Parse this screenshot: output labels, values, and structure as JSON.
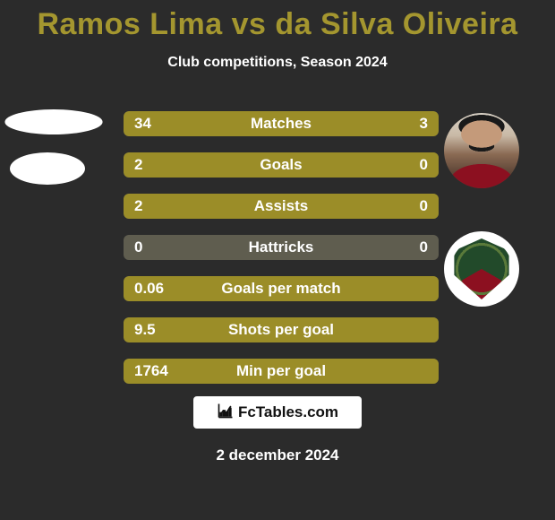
{
  "title": "Ramos Lima vs da Silva Oliveira",
  "subtitle": "Club competitions, Season 2024",
  "colors": {
    "background": "#2b2b2b",
    "title": "#a4962f",
    "text": "#ffffff",
    "fill_left": "#9b8d28",
    "fill_right": "#9b8d28",
    "track": "#5f5d4f"
  },
  "rows": [
    {
      "label": "Matches",
      "left": "34",
      "right": "3",
      "fill_left_pct": 78,
      "fill_right_pct": 22
    },
    {
      "label": "Goals",
      "left": "2",
      "right": "0",
      "fill_left_pct": 100,
      "fill_right_pct": 0
    },
    {
      "label": "Assists",
      "left": "2",
      "right": "0",
      "fill_left_pct": 100,
      "fill_right_pct": 0
    },
    {
      "label": "Hattricks",
      "left": "0",
      "right": "0",
      "fill_left_pct": 0,
      "fill_right_pct": 0
    },
    {
      "label": "Goals per match",
      "left": "0.06",
      "right": "",
      "fill_left_pct": 100,
      "fill_right_pct": 0
    },
    {
      "label": "Shots per goal",
      "left": "9.5",
      "right": "",
      "fill_left_pct": 100,
      "fill_right_pct": 0
    },
    {
      "label": "Min per goal",
      "left": "1764",
      "right": "",
      "fill_left_pct": 100,
      "fill_right_pct": 0
    }
  ],
  "footer": {
    "logo_text": "FcTables.com",
    "date": "2 december 2024"
  },
  "avatars": {
    "player_left_name": "ramos-lima-avatar",
    "club_left_name": "club-left-crest",
    "player_right_name": "da-silva-oliveira-avatar",
    "club_right_name": "fluminense-crest"
  }
}
